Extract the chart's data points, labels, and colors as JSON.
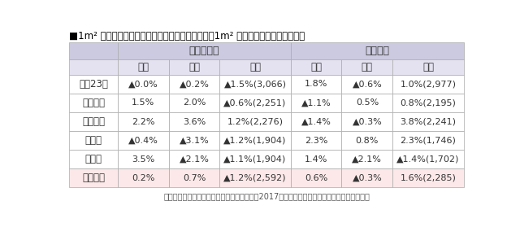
{
  "title": "■1m² あたり成約賃料の前年同月比　（カッコ内：1m² あたり成約賃料、単位円）",
  "group_headers": [
    "マンション",
    "アパート"
  ],
  "col_headers": [
    "１月",
    "２月",
    "３月",
    "１月",
    "２月",
    "３月"
  ],
  "row_labels": [
    "東京23区",
    "東京都下",
    "神奈川県",
    "埼玉県",
    "千葉県",
    "首都圏計"
  ],
  "data": [
    [
      "▲0.0%",
      "▲0.2%",
      "▲1.5%(3,066)",
      "1.8%",
      "▲0.6%",
      "1.0%(2,977)"
    ],
    [
      "1.5%",
      "2.0%",
      "▲0.6%(2,251)",
      "▲1.1%",
      "0.5%",
      "0.8%(2,195)"
    ],
    [
      "2.2%",
      "3.6%",
      "1.2%(2,276)",
      "▲1.4%",
      "▲0.3%",
      "3.8%(2,241)"
    ],
    [
      "▲0.4%",
      "▲3.1%",
      "▲1.2%(1,904)",
      "2.3%",
      "0.8%",
      "2.3%(1,746)"
    ],
    [
      "3.5%",
      "▲2.1%",
      "▲1.1%(1,904)",
      "1.4%",
      "▲2.1%",
      "▲1.4%(1,702)"
    ],
    [
      "0.2%",
      "0.7%",
      "▲1.2%(2,592)",
      "0.6%",
      "▲0.3%",
      "1.6%(2,285)"
    ]
  ],
  "footer": "出典：「首都圏の居住用賃貸物件成約動向（2017年１月、２月、３月）」アットホーム調べ",
  "header_bg": "#cccae0",
  "subheader_bg": "#e4e2f0",
  "row_bg_normal": "#ffffff",
  "row_bg_last": "#fce8e8",
  "border_color": "#aaaaaa",
  "text_color": "#333333",
  "title_color": "#000000",
  "footer_color": "#555555"
}
